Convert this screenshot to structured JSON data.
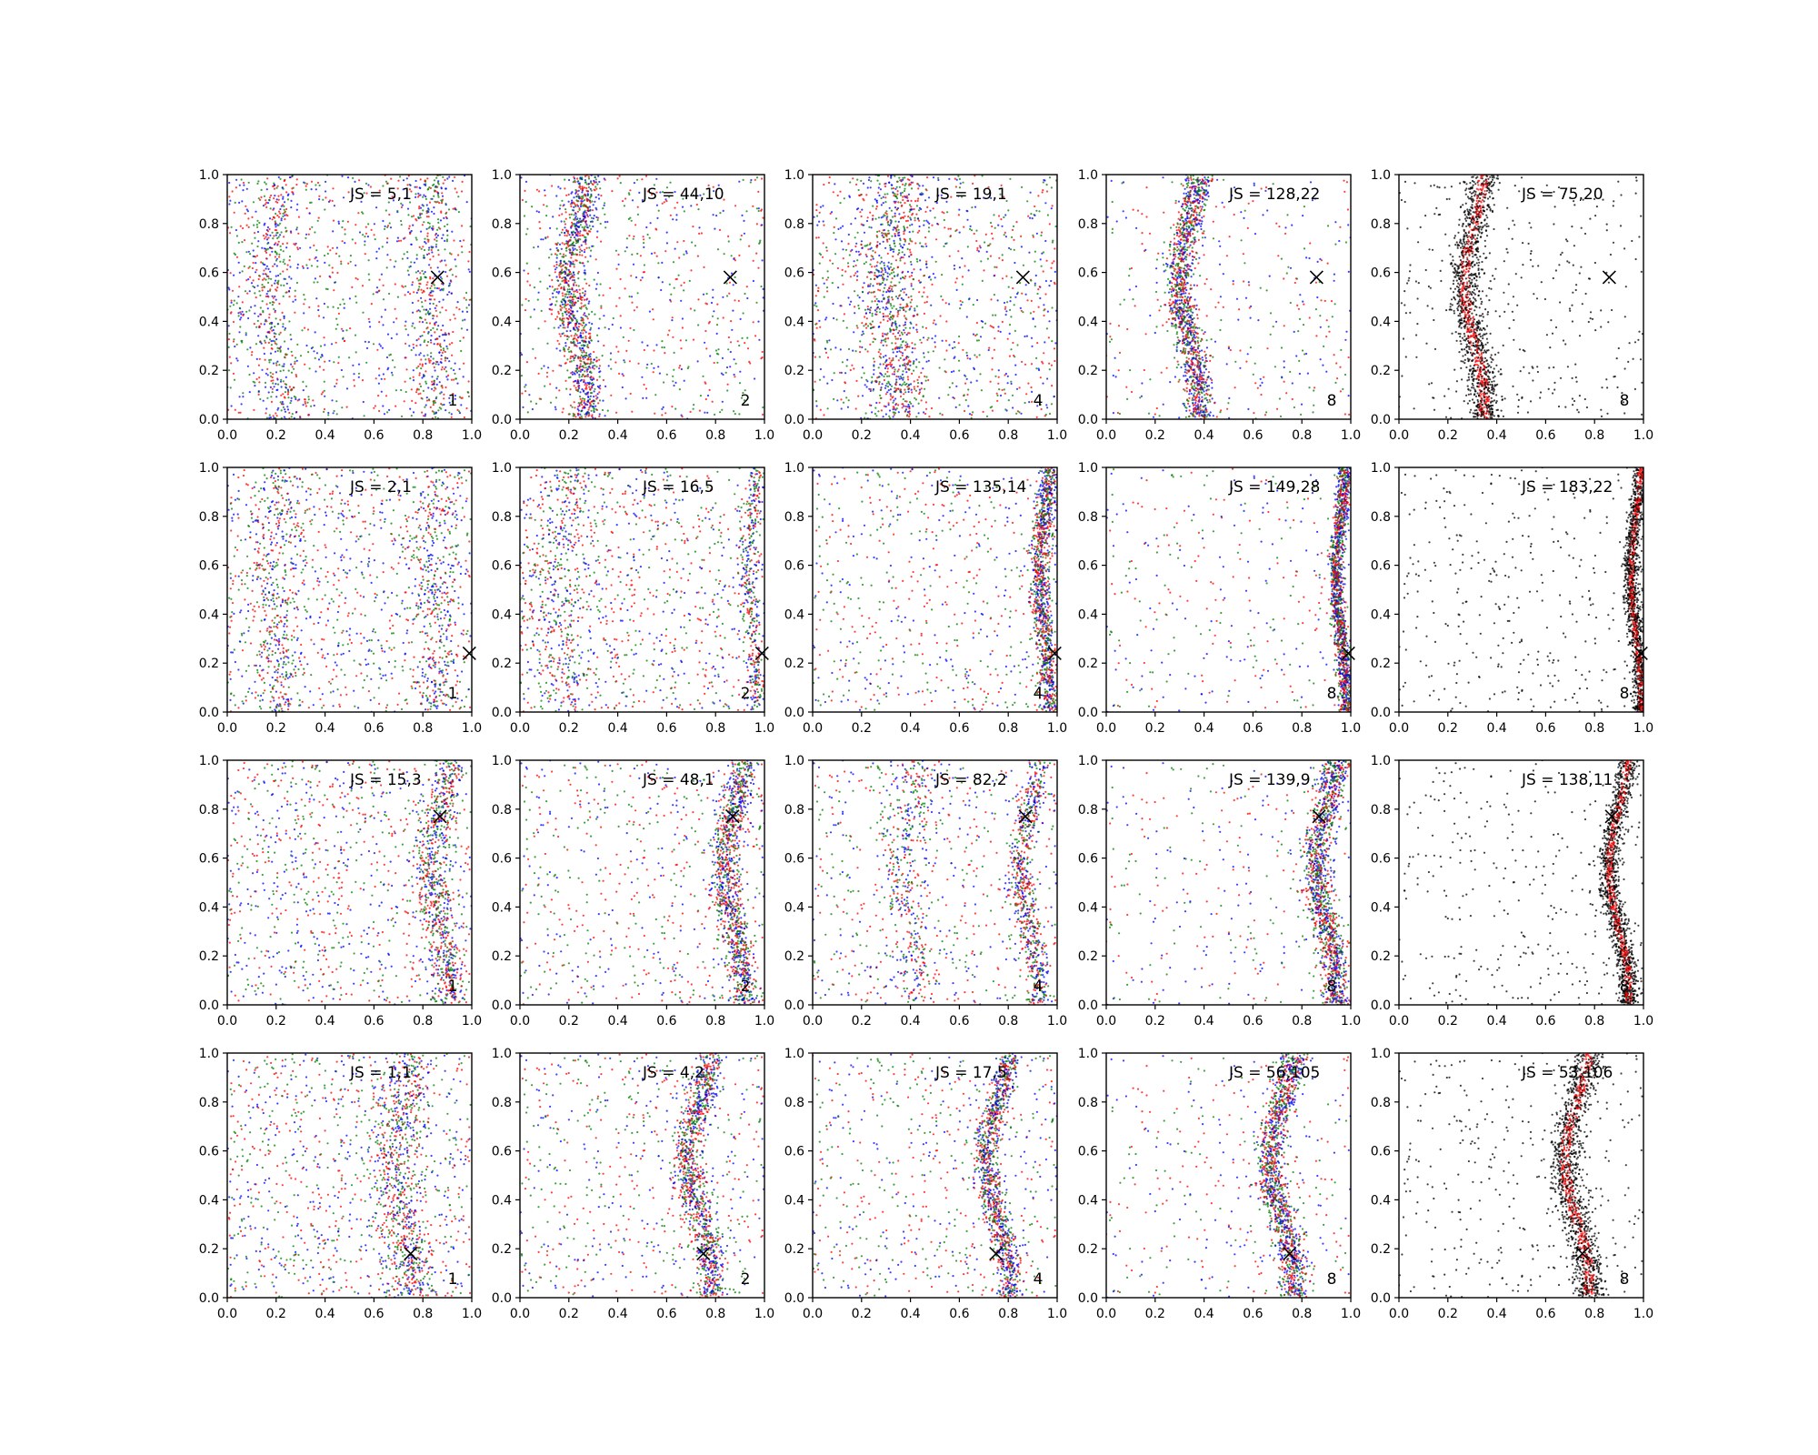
{
  "chart_data": {
    "type": "scatter",
    "layout": "grid of 4 rows x 5 columns of scatter subplots",
    "series_colors": {
      "red": "#ff0000",
      "green": "#008000",
      "blue": "#0000ff",
      "black": "#000000"
    },
    "xlim": [
      0.0,
      1.0
    ],
    "ylim": [
      0.0,
      1.0
    ],
    "xticks": [
      "0.0",
      "0.2",
      "0.4",
      "0.6",
      "0.8",
      "1.0"
    ],
    "yticks": [
      "0.0",
      "0.2",
      "0.4",
      "0.6",
      "0.8",
      "1.0"
    ],
    "grid": false,
    "rows": [
      {
        "x_marker": [
          0.86,
          0.58
        ],
        "panels": [
          {
            "annotation": "JS = 5,1",
            "label": "1",
            "colors": [
              "red",
              "green",
              "blue"
            ],
            "band": {
              "center": 0.19,
              "amp": 0.03,
              "width": 0.04
            },
            "band2": {
              "center": 0.84,
              "amp": 0.02,
              "width": 0.05
            },
            "density": "diffuse"
          },
          {
            "annotation": "JS = 44,10",
            "label": "2",
            "colors": [
              "red",
              "green",
              "blue"
            ],
            "band": {
              "center": 0.24,
              "amp": 0.04,
              "width": 0.035
            },
            "density": "medium"
          },
          {
            "annotation": "JS = 19,1",
            "label": "4",
            "colors": [
              "red",
              "green",
              "blue"
            ],
            "band": {
              "center": 0.33,
              "amp": 0.03,
              "width": 0.06
            },
            "density": "diffuse"
          },
          {
            "annotation": "JS = 128,22",
            "label": "8",
            "colors": [
              "red",
              "green",
              "blue"
            ],
            "band": {
              "center": 0.34,
              "amp": 0.04,
              "width": 0.03
            },
            "density": "tight"
          },
          {
            "annotation": "JS = 75,20",
            "label": "8",
            "colors": [
              "black",
              "red"
            ],
            "band": {
              "center": 0.31,
              "amp": 0.04,
              "width": 0.03
            },
            "density": "tight"
          }
        ]
      },
      {
        "x_marker": [
          0.99,
          0.24
        ],
        "panels": [
          {
            "annotation": "JS = 2,1",
            "label": "1",
            "colors": [
              "red",
              "green",
              "blue"
            ],
            "band": {
              "center": 0.2,
              "amp": 0.02,
              "width": 0.05
            },
            "band2": {
              "center": 0.85,
              "amp": 0.02,
              "width": 0.05
            },
            "density": "diffuse"
          },
          {
            "annotation": "JS = 16,5",
            "label": "2",
            "colors": [
              "red",
              "green",
              "blue"
            ],
            "band": {
              "center": 0.16,
              "amp": 0.03,
              "width": 0.06
            },
            "band2": {
              "center": 0.95,
              "amp": 0.02,
              "width": 0.02
            },
            "density": "diffuse"
          },
          {
            "annotation": "JS = 135,14",
            "label": "4",
            "colors": [
              "red",
              "green",
              "blue"
            ],
            "band": {
              "center": 0.95,
              "amp": 0.02,
              "width": 0.02
            },
            "density": "medium"
          },
          {
            "annotation": "JS = 149,28",
            "label": "8",
            "colors": [
              "red",
              "green",
              "blue"
            ],
            "band": {
              "center": 0.96,
              "amp": 0.02,
              "width": 0.015
            },
            "density": "tight"
          },
          {
            "annotation": "JS = 183,22",
            "label": "8",
            "colors": [
              "black",
              "red"
            ],
            "band": {
              "center": 0.97,
              "amp": 0.02,
              "width": 0.015
            },
            "density": "tight"
          }
        ]
      },
      {
        "x_marker": [
          0.87,
          0.77
        ],
        "panels": [
          {
            "annotation": "JS = 15,3",
            "label": "1",
            "colors": [
              "red",
              "green",
              "blue"
            ],
            "band": {
              "center": 0.87,
              "amp": 0.04,
              "width": 0.035
            },
            "density": "diffuse"
          },
          {
            "annotation": "JS = 48,1",
            "label": "2",
            "colors": [
              "red",
              "green",
              "blue"
            ],
            "band": {
              "center": 0.88,
              "amp": 0.04,
              "width": 0.03
            },
            "density": "medium"
          },
          {
            "annotation": "JS = 82,2",
            "label": "4",
            "colors": [
              "red",
              "green",
              "blue"
            ],
            "band": {
              "center": 0.89,
              "amp": 0.04,
              "width": 0.025
            },
            "band2": {
              "center": 0.4,
              "amp": 0.03,
              "width": 0.05
            },
            "density": "medium"
          },
          {
            "annotation": "JS = 139,9",
            "label": "8",
            "colors": [
              "red",
              "green",
              "blue"
            ],
            "band": {
              "center": 0.9,
              "amp": 0.04,
              "width": 0.03
            },
            "density": "tight"
          },
          {
            "annotation": "JS = 138,11",
            "label": "8",
            "colors": [
              "black",
              "red"
            ],
            "band": {
              "center": 0.9,
              "amp": 0.04,
              "width": 0.02
            },
            "density": "tight"
          }
        ]
      },
      {
        "x_marker": [
          0.75,
          0.18
        ],
        "panels": [
          {
            "annotation": "JS = 1,1",
            "label": "1",
            "colors": [
              "red",
              "green",
              "blue"
            ],
            "band": {
              "center": 0.72,
              "amp": 0.04,
              "width": 0.05
            },
            "density": "diffuse"
          },
          {
            "annotation": "JS = 4,2",
            "label": "2",
            "colors": [
              "red",
              "green",
              "blue"
            ],
            "band": {
              "center": 0.74,
              "amp": 0.05,
              "width": 0.03
            },
            "density": "medium"
          },
          {
            "annotation": "JS = 17,5",
            "label": "4",
            "colors": [
              "red",
              "green",
              "blue"
            ],
            "band": {
              "center": 0.76,
              "amp": 0.05,
              "width": 0.025
            },
            "density": "medium"
          },
          {
            "annotation": "JS = 56,105",
            "label": "8",
            "colors": [
              "red",
              "green",
              "blue"
            ],
            "band": {
              "center": 0.72,
              "amp": 0.05,
              "width": 0.03
            },
            "density": "tight"
          },
          {
            "annotation": "JS = 53,106",
            "label": "8",
            "colors": [
              "black",
              "red"
            ],
            "band": {
              "center": 0.73,
              "amp": 0.05,
              "width": 0.03
            },
            "density": "tight"
          }
        ]
      }
    ]
  }
}
